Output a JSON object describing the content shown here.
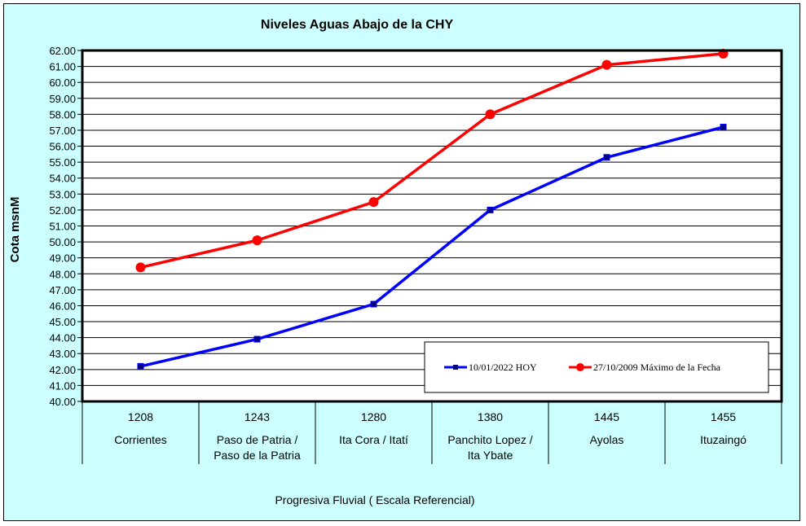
{
  "chart_data": {
    "type": "line",
    "title": "Niveles Aguas Abajo de la CHY",
    "ylabel": "Cota msnM",
    "xlabel": "Progresiva Fluvial ( Escala Referencial)",
    "ylim": [
      40,
      62
    ],
    "ytick_step": 1,
    "ytick_format": "2 decimals",
    "grid": true,
    "legend_position": "bottom-right",
    "categories": [
      {
        "km": "1208",
        "name": [
          "Corrientes"
        ]
      },
      {
        "km": "1243",
        "name": [
          "Paso de Patria /",
          "Paso de la Patria"
        ]
      },
      {
        "km": "1280",
        "name": [
          "Ita Cora / Itatí"
        ]
      },
      {
        "km": "1380",
        "name": [
          "Panchito Lopez /",
          "Ita Ybate"
        ]
      },
      {
        "km": "1445",
        "name": [
          "Ayolas"
        ]
      },
      {
        "km": "1455",
        "name": [
          "Ituzaingó"
        ]
      }
    ],
    "series": [
      {
        "name": "10/01/2022 HOY",
        "color": "#0000ff",
        "marker": "square",
        "values": [
          42.2,
          43.9,
          46.1,
          52.0,
          55.3,
          57.2
        ]
      },
      {
        "name": "27/10/2009 Máximo de la Fecha",
        "color": "#ff0000",
        "marker": "circle",
        "values": [
          48.4,
          50.1,
          52.5,
          58.0,
          61.1,
          61.8
        ]
      }
    ]
  }
}
